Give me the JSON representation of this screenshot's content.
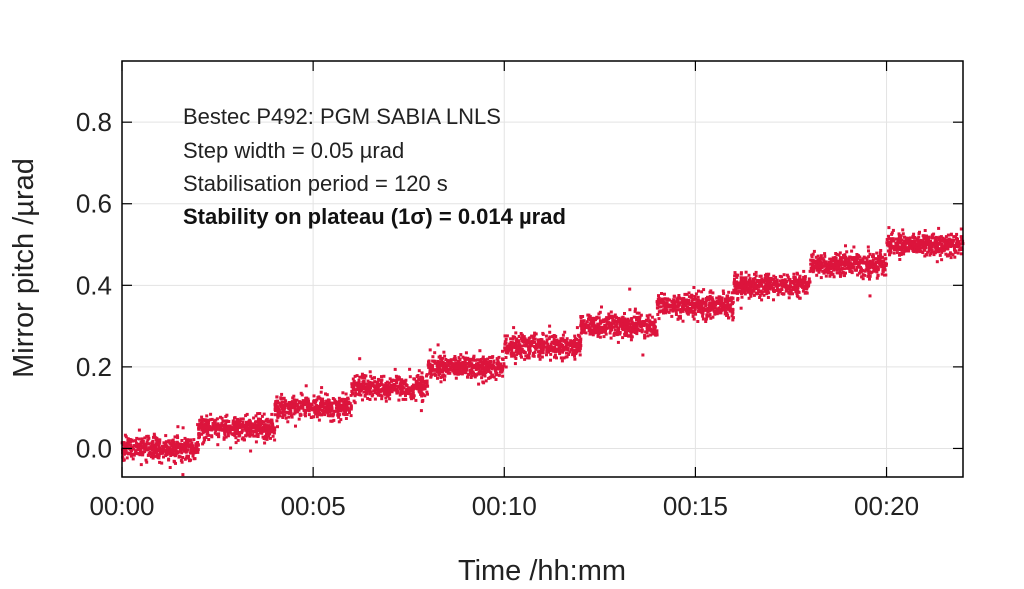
{
  "chart_data": {
    "type": "scatter",
    "title": "",
    "xlabel": "Time /hh:mm",
    "ylabel": "Mirror pitch /µrad",
    "xlim_minutes": [
      0,
      22
    ],
    "ylim": [
      -0.07,
      0.95
    ],
    "x_ticks": [
      {
        "value": 0,
        "label": "00:00"
      },
      {
        "value": 5,
        "label": "00:05"
      },
      {
        "value": 10,
        "label": "00:10"
      },
      {
        "value": 15,
        "label": "00:15"
      },
      {
        "value": 20,
        "label": "00:20"
      }
    ],
    "y_ticks": [
      {
        "value": 0.0,
        "label": "0.0"
      },
      {
        "value": 0.2,
        "label": "0.2"
      },
      {
        "value": 0.4,
        "label": "0.4"
      },
      {
        "value": 0.6,
        "label": "0.6"
      },
      {
        "value": 0.8,
        "label": "0.8"
      }
    ],
    "grid": true,
    "series": [
      {
        "color": "#dc143c",
        "marker": "dot",
        "plateaus": [
          {
            "start": 0.0,
            "end": 2.0,
            "y": 0.0
          },
          {
            "start": 2.0,
            "end": 4.0,
            "y": 0.05
          },
          {
            "start": 4.0,
            "end": 6.0,
            "y": 0.1
          },
          {
            "start": 6.0,
            "end": 8.0,
            "y": 0.15
          },
          {
            "start": 8.0,
            "end": 10.0,
            "y": 0.2
          },
          {
            "start": 10.0,
            "end": 12.0,
            "y": 0.25
          },
          {
            "start": 12.0,
            "end": 14.0,
            "y": 0.3
          },
          {
            "start": 14.0,
            "end": 16.0,
            "y": 0.35
          },
          {
            "start": 16.0,
            "end": 18.0,
            "y": 0.4
          },
          {
            "start": 18.0,
            "end": 20.0,
            "y": 0.45
          },
          {
            "start": 20.0,
            "end": 22.0,
            "y": 0.5
          }
        ],
        "noise_sigma": 0.014
      }
    ],
    "annotations": [
      {
        "text": "Bestec P492: PGM SABIA LNLS",
        "bold": false
      },
      {
        "text": "Step width = 0.05 µrad",
        "bold": false
      },
      {
        "text": "Stabilisation period = 120 s",
        "bold": false
      },
      {
        "text": "Stability on plateau (1σ) = 0.014 µrad",
        "bold": true
      }
    ]
  }
}
